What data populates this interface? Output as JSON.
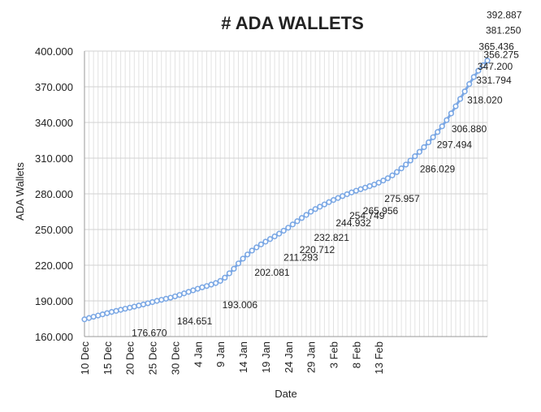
{
  "chart_data": {
    "type": "line",
    "title": "# ADA WALLETS",
    "xlabel": "Date",
    "ylabel": "ADA Wallets",
    "ylim": [
      160000,
      400000
    ],
    "y_ticks": [
      "160.000",
      "190.000",
      "220.000",
      "250.000",
      "280.000",
      "310.000",
      "340.000",
      "370.000",
      "400.000"
    ],
    "x_ticks": [
      "10 Dec",
      "15 Dec",
      "20 Dec",
      "25 Dec",
      "30 Dec",
      "4 Jan",
      "9 Jan",
      "14 Jan",
      "19 Jan",
      "24 Jan",
      "29 Jan",
      "3 Feb",
      "8 Feb",
      "13 Feb"
    ],
    "grid": true,
    "series_color": "#7aa7e4",
    "series": [
      {
        "values": [
          174500,
          175600,
          176670,
          177700,
          178700,
          179700,
          180700,
          181600,
          182500,
          183400,
          184300,
          185200,
          186100,
          187000,
          188000,
          189000,
          190000,
          190900,
          191800,
          192700,
          193800,
          195000,
          196300,
          197600,
          198900,
          200200,
          201400,
          202500,
          203700,
          205000,
          206800,
          209500,
          213200,
          217000,
          221500,
          225500,
          229000,
          232300,
          235000,
          237500,
          239800,
          242000,
          244200,
          246500,
          249000,
          251500,
          254300,
          257000,
          259700,
          262300,
          265000,
          267200,
          269200,
          271100,
          273000,
          274800,
          276500,
          278100,
          279700,
          281200,
          282600,
          283900,
          285200,
          286500,
          287800,
          289400,
          291200,
          293100,
          295500,
          298300,
          301400,
          304600,
          308000,
          311600,
          315300,
          319200,
          323300,
          327600,
          332000,
          336800,
          342000,
          347600,
          353600,
          359800,
          366100,
          372300,
          378200,
          383500,
          388100,
          392000
        ]
      }
    ],
    "data_labels": [
      {
        "i": 9,
        "value": "176.670"
      },
      {
        "i": 19,
        "value": "184.651"
      },
      {
        "i": 29,
        "value": "193.006"
      },
      {
        "i": 37,
        "value": "202.081"
      },
      {
        "i": 42,
        "value": "211.293"
      },
      {
        "i": 45,
        "value": "220.712"
      },
      {
        "i": 48,
        "value": "232.821"
      },
      {
        "i": 53,
        "value": "244.932"
      },
      {
        "i": 56,
        "value": "254.749"
      },
      {
        "i": 59,
        "value": "265.956"
      },
      {
        "i": 65,
        "value": "275.957"
      },
      {
        "i": 73,
        "value": "286.029"
      },
      {
        "i": 78,
        "value": "297.494"
      },
      {
        "i": 80,
        "value": "306.880"
      },
      {
        "i": 84,
        "value": "318.020"
      },
      {
        "i": 86,
        "value": "331.794"
      },
      {
        "i": 87,
        "value": "347.200"
      },
      {
        "i": 88,
        "value": "356.275"
      },
      {
        "i": 88,
        "value": "365.436"
      },
      {
        "i": 89,
        "value": "381.250"
      },
      {
        "i": 89,
        "value": "392.887"
      }
    ]
  }
}
